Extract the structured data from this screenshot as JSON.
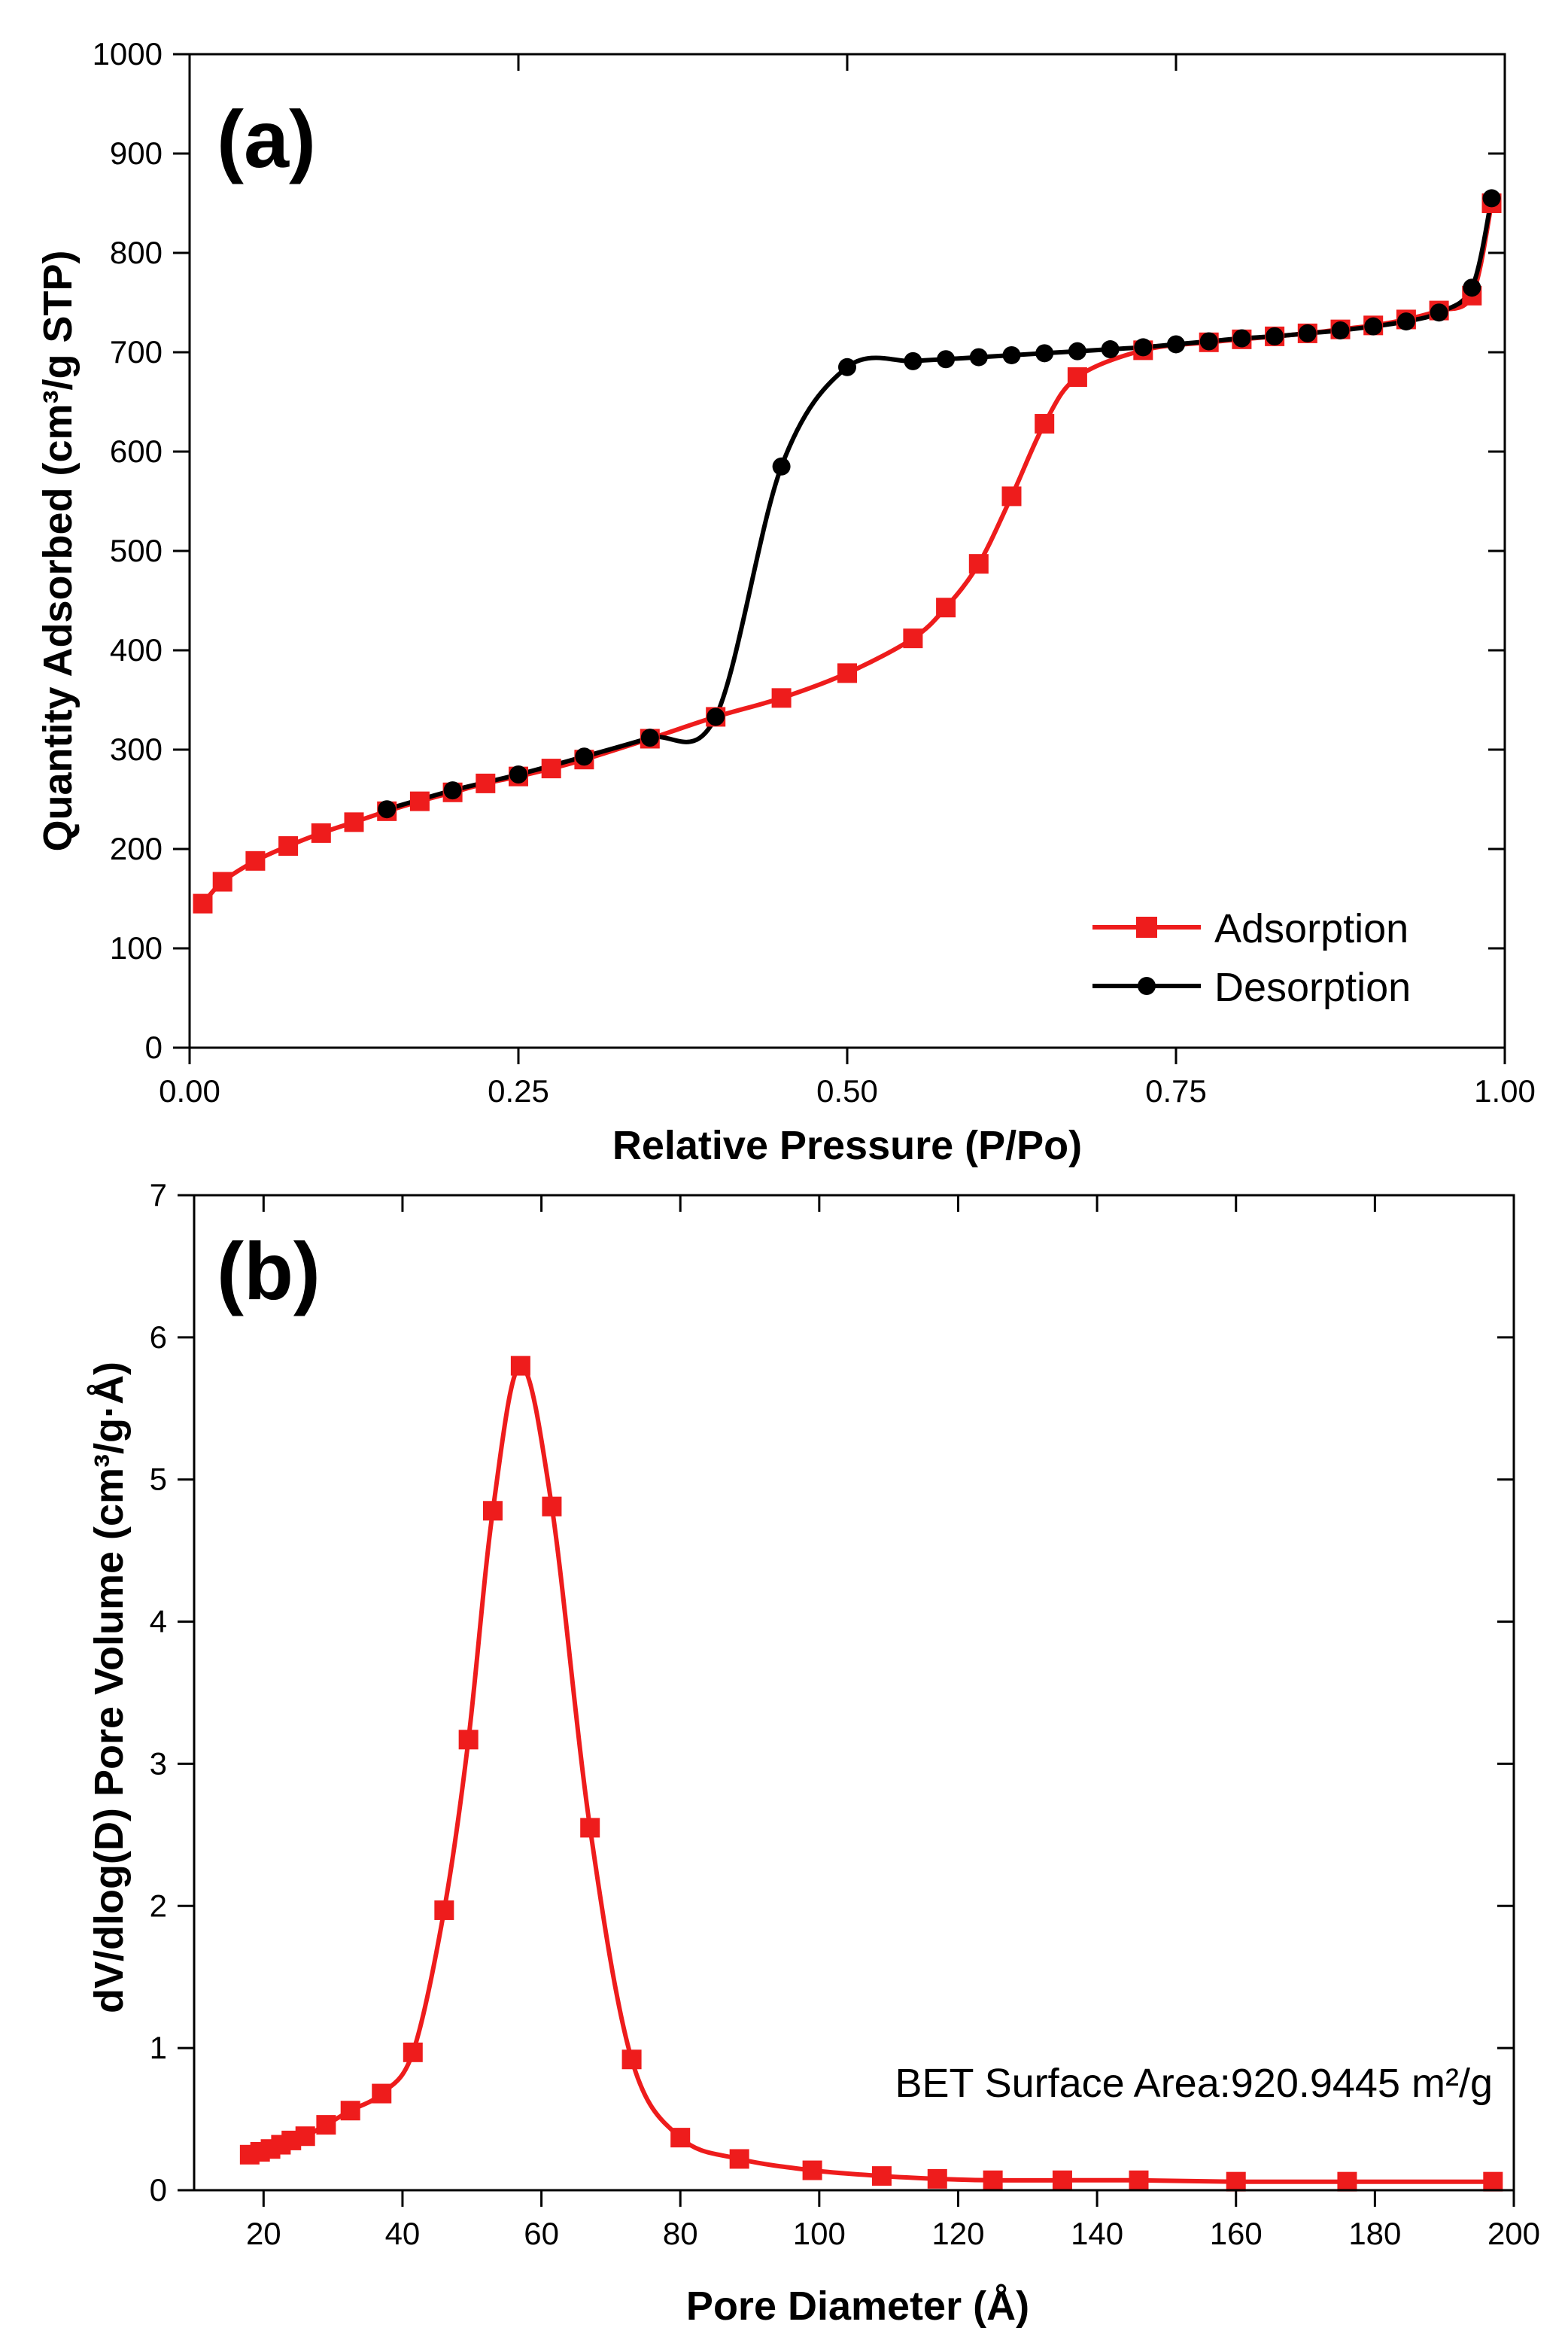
{
  "chart_data": [
    {
      "panel": "(a)",
      "type": "line",
      "xlabel": "Relative Pressure (P/Po)",
      "ylabel": "Quantity Adsorbed (cm³/g STP)",
      "xlim": [
        0,
        1
      ],
      "ylim": [
        0,
        1000
      ],
      "x_ticks": [
        0,
        0.25,
        0.5,
        0.75,
        1
      ],
      "x_tick_labels": [
        "0.00",
        "0.25",
        "0.50",
        "0.75",
        "1.00"
      ],
      "y_ticks": [
        0,
        100,
        200,
        300,
        400,
        500,
        600,
        700,
        800,
        900,
        1000
      ],
      "y_tick_labels": [
        "0",
        "100",
        "200",
        "300",
        "400",
        "500",
        "600",
        "700",
        "800",
        "900",
        "1000"
      ],
      "grid": false,
      "legend_position": "bottom-right",
      "series": [
        {
          "name": "Adsorption",
          "color": "#ee1c1c",
          "marker": "square",
          "points": [
            [
              0.01,
              145
            ],
            [
              0.025,
              167
            ],
            [
              0.05,
              188
            ],
            [
              0.075,
              203
            ],
            [
              0.1,
              216
            ],
            [
              0.125,
              227
            ],
            [
              0.15,
              238
            ],
            [
              0.175,
              248
            ],
            [
              0.2,
              257
            ],
            [
              0.225,
              266
            ],
            [
              0.25,
              273
            ],
            [
              0.275,
              281
            ],
            [
              0.3,
              290
            ],
            [
              0.35,
              311
            ],
            [
              0.4,
              333
            ],
            [
              0.45,
              352
            ],
            [
              0.5,
              377
            ],
            [
              0.55,
              412
            ],
            [
              0.575,
              443
            ],
            [
              0.6,
              487
            ],
            [
              0.625,
              555
            ],
            [
              0.65,
              628
            ],
            [
              0.675,
              675
            ],
            [
              0.725,
              702
            ],
            [
              0.775,
              710
            ],
            [
              0.8,
              713
            ],
            [
              0.825,
              716
            ],
            [
              0.85,
              719
            ],
            [
              0.875,
              723
            ],
            [
              0.9,
              727
            ],
            [
              0.925,
              733
            ],
            [
              0.95,
              742
            ],
            [
              0.975,
              757
            ],
            [
              0.99,
              850
            ]
          ]
        },
        {
          "name": "Desorption",
          "color": "#000000",
          "marker": "circle",
          "points": [
            [
              0.15,
              240
            ],
            [
              0.2,
              259
            ],
            [
              0.25,
              275
            ],
            [
              0.3,
              293
            ],
            [
              0.35,
              312
            ],
            [
              0.4,
              333
            ],
            [
              0.45,
              585
            ],
            [
              0.5,
              685
            ],
            [
              0.55,
              691
            ],
            [
              0.575,
              693
            ],
            [
              0.6,
              695
            ],
            [
              0.625,
              697
            ],
            [
              0.65,
              699
            ],
            [
              0.675,
              701
            ],
            [
              0.7,
              703
            ],
            [
              0.725,
              705
            ],
            [
              0.75,
              708
            ],
            [
              0.775,
              711
            ],
            [
              0.8,
              714
            ],
            [
              0.825,
              716
            ],
            [
              0.85,
              719
            ],
            [
              0.875,
              722
            ],
            [
              0.9,
              726
            ],
            [
              0.925,
              731
            ],
            [
              0.95,
              740
            ],
            [
              0.975,
              765
            ],
            [
              0.99,
              855
            ]
          ]
        }
      ]
    },
    {
      "panel": "(b)",
      "type": "line",
      "xlabel": "Pore Diameter (Å)",
      "ylabel": "dV/dlog(D) Pore Volume (cm³/g·Å)",
      "xlim": [
        10,
        200
      ],
      "ylim": [
        0,
        7
      ],
      "x_ticks": [
        20,
        40,
        60,
        80,
        100,
        120,
        140,
        160,
        180,
        200
      ],
      "x_tick_labels": [
        "20",
        "40",
        "60",
        "80",
        "100",
        "120",
        "140",
        "160",
        "180",
        "200"
      ],
      "y_ticks": [
        0,
        1,
        2,
        3,
        4,
        5,
        6,
        7
      ],
      "y_tick_labels": [
        "0",
        "1",
        "2",
        "3",
        "4",
        "5",
        "6",
        "7"
      ],
      "grid": false,
      "annotation": "BET Surface Area:920.9445 m²/g",
      "series": [
        {
          "color": "#ee1c1c",
          "marker": "square",
          "points": [
            [
              18,
              0.25
            ],
            [
              19.5,
              0.27
            ],
            [
              21,
              0.29
            ],
            [
              22.5,
              0.32
            ],
            [
              24,
              0.35
            ],
            [
              26,
              0.38
            ],
            [
              29,
              0.46
            ],
            [
              32.5,
              0.56
            ],
            [
              37,
              0.68
            ],
            [
              41.5,
              0.97
            ],
            [
              46,
              1.97
            ],
            [
              49.5,
              3.17
            ],
            [
              53,
              4.78
            ],
            [
              57,
              5.8
            ],
            [
              61.5,
              4.81
            ],
            [
              67,
              2.55
            ],
            [
              73,
              0.92
            ],
            [
              80,
              0.37
            ],
            [
              88.5,
              0.22
            ],
            [
              99,
              0.14
            ],
            [
              109,
              0.1
            ],
            [
              117,
              0.08
            ],
            [
              125,
              0.07
            ],
            [
              135,
              0.07
            ],
            [
              146,
              0.07
            ],
            [
              160,
              0.06
            ],
            [
              176,
              0.06
            ],
            [
              197,
              0.06
            ]
          ]
        }
      ]
    }
  ]
}
